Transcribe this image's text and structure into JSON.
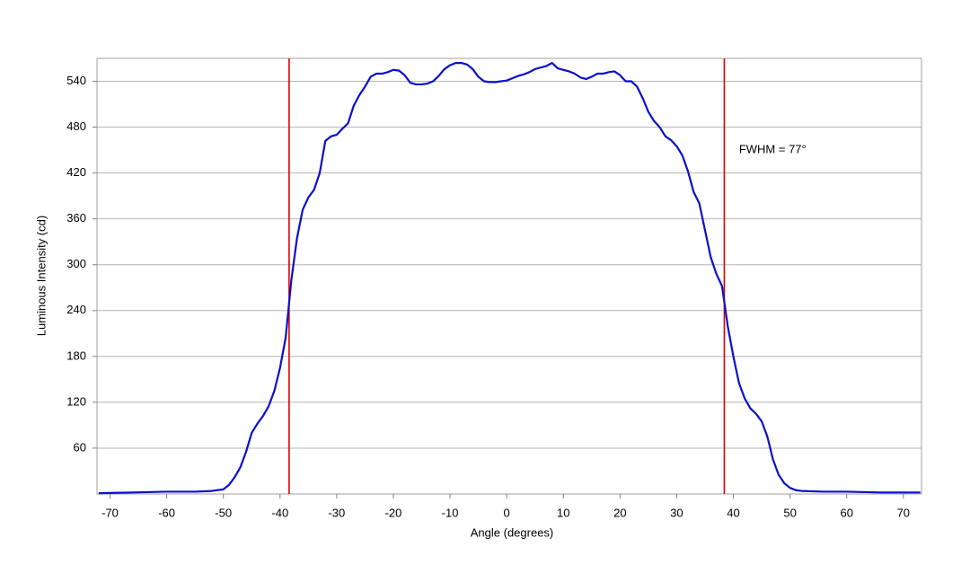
{
  "chart_data": {
    "type": "line",
    "x_label": "Angle (degrees)",
    "y_label": "Luminous Intensity (cd)",
    "x": [
      -72,
      -66,
      -60,
      -55,
      -52,
      -50,
      -49,
      -48,
      -47,
      -46,
      -45,
      -44,
      -43,
      -42,
      -41,
      -40,
      -39,
      -38,
      -37,
      -36,
      -35,
      -34,
      -33,
      -32,
      -31,
      -30,
      -29,
      -28,
      -27,
      -26,
      -25,
      -24,
      -23,
      -22,
      -21,
      -20,
      -19,
      -18,
      -17,
      -16,
      -15,
      -14,
      -13,
      -12,
      -11,
      -10,
      -9,
      -8,
      -7,
      -6,
      -5,
      -4,
      -3,
      -2,
      -1,
      0,
      1,
      2,
      3,
      4,
      5,
      6,
      7,
      8,
      9,
      10,
      11,
      12,
      13,
      14,
      15,
      16,
      17,
      18,
      19,
      20,
      21,
      22,
      23,
      24,
      25,
      26,
      27,
      28,
      29,
      30,
      31,
      32,
      33,
      34,
      35,
      36,
      37,
      38,
      39,
      40,
      41,
      42,
      43,
      44,
      45,
      46,
      47,
      48,
      49,
      50,
      51,
      52,
      56,
      60,
      66,
      73
    ],
    "series": [
      {
        "name": "Intensity",
        "color": "#0a10c8",
        "values": [
          1,
          2,
          3,
          3,
          4,
          6,
          12,
          22,
          35,
          55,
          80,
          92,
          102,
          115,
          135,
          165,
          205,
          280,
          335,
          372,
          388,
          398,
          420,
          462,
          468,
          470,
          478,
          485,
          508,
          522,
          533,
          546,
          550,
          550,
          552,
          555,
          554,
          548,
          538,
          536,
          536,
          537,
          540,
          547,
          556,
          561,
          564,
          564,
          562,
          556,
          546,
          540,
          539,
          539,
          540,
          541,
          544,
          547,
          549,
          552,
          556,
          558,
          560,
          564,
          557,
          555,
          553,
          550,
          545,
          543,
          546,
          550,
          550,
          552,
          553,
          548,
          540,
          540,
          533,
          518,
          500,
          488,
          480,
          468,
          463,
          455,
          443,
          422,
          395,
          380,
          345,
          310,
          288,
          272,
          220,
          180,
          145,
          125,
          112,
          105,
          95,
          75,
          45,
          25,
          14,
          8,
          5,
          4,
          3,
          3,
          2,
          2
        ]
      }
    ],
    "markers": [
      -38.4,
      38.4
    ],
    "marker_color": "#e00000",
    "annotation": {
      "text": "FWHM = 77°",
      "x": 41,
      "y": 450
    },
    "xlim": [
      -72.3,
      73.2
    ],
    "ylim": [
      0,
      570
    ],
    "xticks": [
      -70,
      -60,
      -50,
      -40,
      -30,
      -20,
      -10,
      0,
      10,
      20,
      30,
      40,
      50,
      60,
      70
    ],
    "yticks": [
      60,
      120,
      180,
      240,
      300,
      360,
      420,
      480,
      540
    ],
    "grid": true
  }
}
